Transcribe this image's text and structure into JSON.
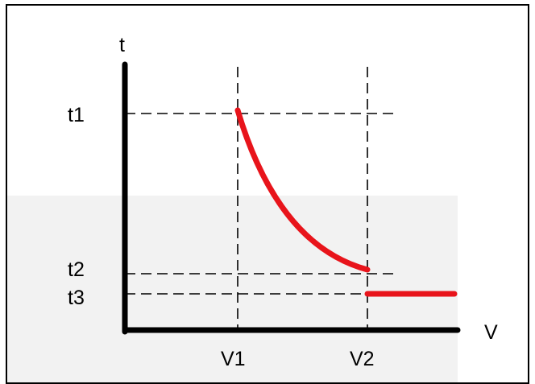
{
  "diagram": {
    "axis_labels": {
      "y": "t",
      "x": "V"
    },
    "y_tick_labels": {
      "t1": "t1",
      "t2": "t2",
      "t3": "t3"
    },
    "x_tick_labels": {
      "v1": "V1",
      "v2": "V2"
    },
    "colors": {
      "curve": "#e8141b",
      "axes": "#000000",
      "guides": "#000000",
      "shaded_region": "#f2f2f2",
      "frame": "#000000",
      "background": "#ffffff"
    }
  }
}
